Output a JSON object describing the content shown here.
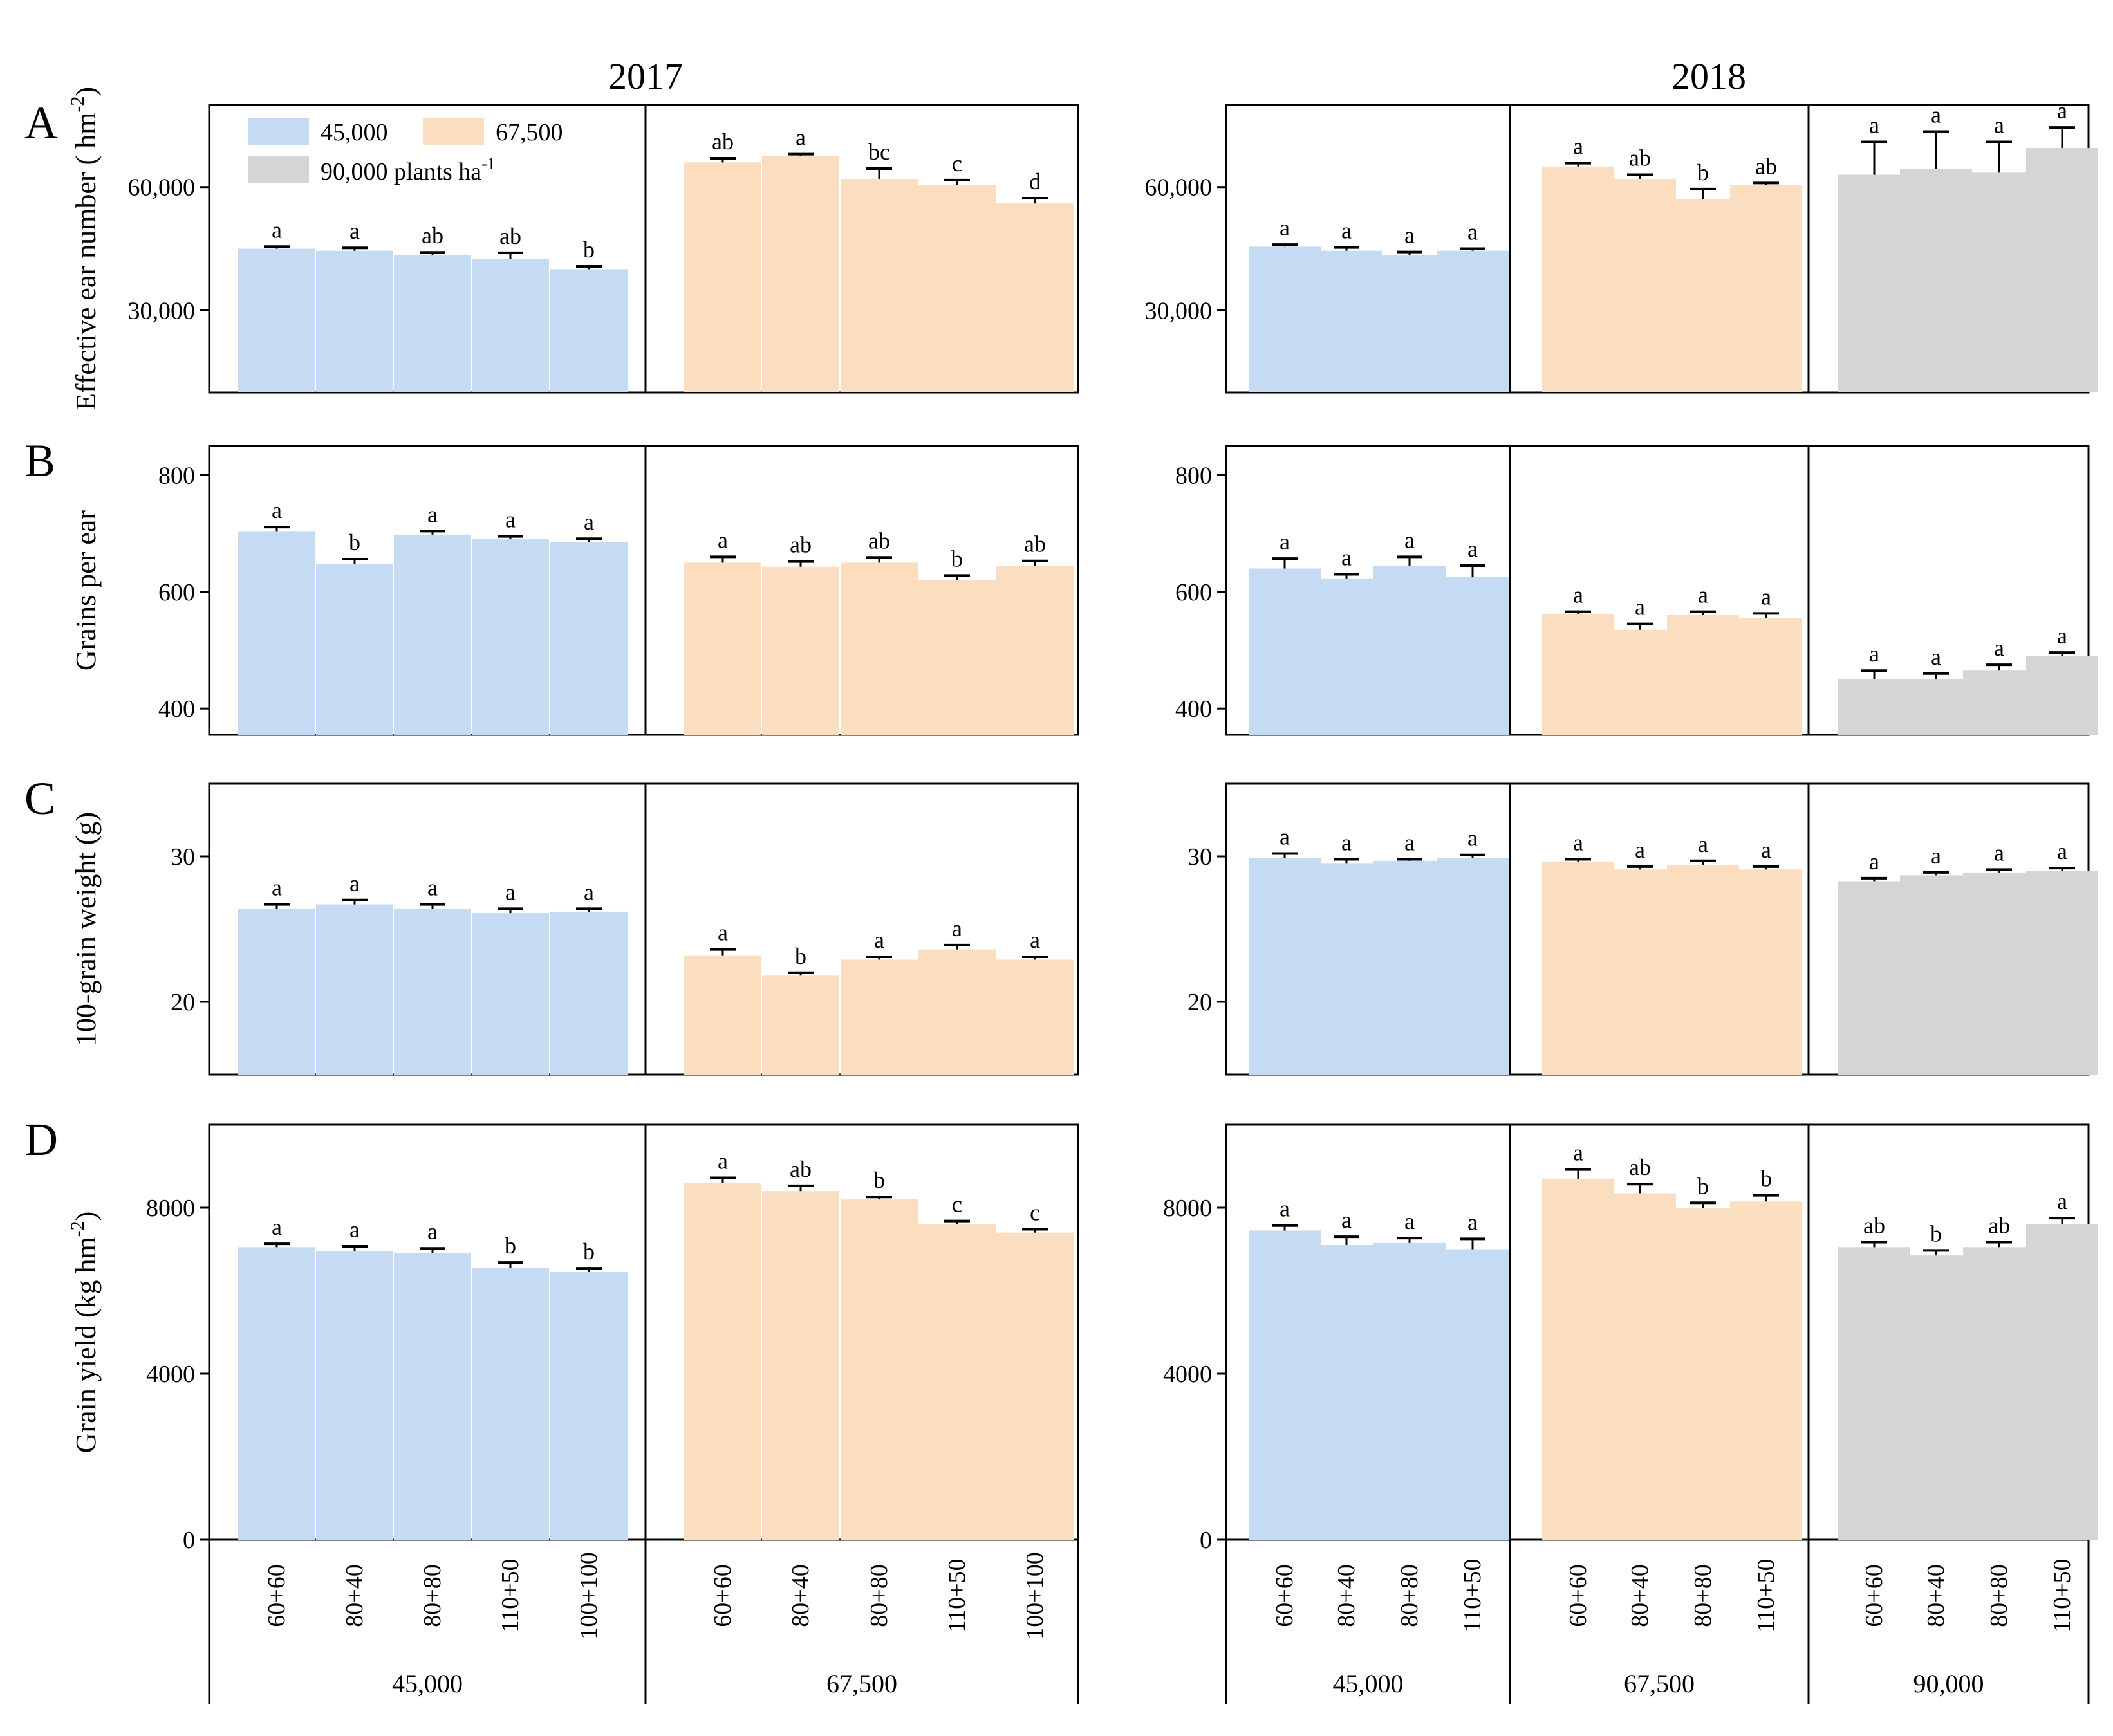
{
  "figure": {
    "years": [
      "2017",
      "2018"
    ],
    "panel_letters": [
      "A",
      "B",
      "C",
      "D"
    ],
    "legend": [
      {
        "label": "45,000",
        "color": "#C5DBF3"
      },
      {
        "label": "67,500",
        "color": "#FBDDBF"
      },
      {
        "label": "90,000 plants ha",
        "sup": "-1",
        "color": "#D5D5D5"
      }
    ],
    "colors": {
      "45000": "#C5DBF3",
      "67500": "#FBDDBF",
      "90000": "#D5D5D5"
    }
  },
  "chart_data": [
    {
      "type": "bar",
      "panel": "A",
      "ylabel": "Effective ear number ( hm",
      "ylabel_sup": "-2",
      "ylabel_tail": ")",
      "ylim": [
        10000,
        80000
      ],
      "yticks": [
        30000,
        60000
      ],
      "ytick_labels": [
        "30,000",
        "60,000"
      ],
      "groups_2017": [
        {
          "density": "45000",
          "categories": [
            "60+60",
            "80+40",
            "80+80",
            "110+50",
            "100+100"
          ],
          "values": [
            45000,
            44500,
            43500,
            42500,
            40000
          ],
          "errors": [
            500,
            700,
            600,
            1500,
            700
          ],
          "letters": [
            "a",
            "a",
            "ab",
            "ab",
            "b"
          ]
        },
        {
          "density": "67500",
          "categories": [
            "60+60",
            "80+40",
            "80+80",
            "110+50",
            "100+100"
          ],
          "values": [
            66000,
            67500,
            62000,
            60500,
            56000
          ],
          "errors": [
            1000,
            500,
            2500,
            1200,
            1300
          ],
          "letters": [
            "ab",
            "a",
            "bc",
            "c",
            "d"
          ]
        }
      ],
      "groups_2018": [
        {
          "density": "45000",
          "categories": [
            "60+60",
            "80+40",
            "80+80",
            "110+50"
          ],
          "values": [
            45500,
            44500,
            43500,
            44500
          ],
          "errors": [
            500,
            800,
            700,
            500
          ],
          "letters": [
            "a",
            "a",
            "a",
            "a"
          ]
        },
        {
          "density": "67500",
          "categories": [
            "60+60",
            "80+40",
            "80+80",
            "110+50"
          ],
          "values": [
            65000,
            62000,
            57000,
            60500
          ],
          "errors": [
            800,
            1000,
            2500,
            500
          ],
          "letters": [
            "a",
            "ab",
            "b",
            "ab"
          ]
        },
        {
          "density": "90000",
          "categories": [
            "60+60",
            "80+40",
            "80+80",
            "110+50"
          ],
          "values": [
            63000,
            64500,
            63500,
            69500
          ],
          "errors": [
            8000,
            9000,
            7500,
            5000
          ],
          "letters": [
            "a",
            "a",
            "a",
            "a"
          ]
        }
      ]
    },
    {
      "type": "bar",
      "panel": "B",
      "ylabel": "Grains per ear",
      "ylabel_sup": "",
      "ylabel_tail": "",
      "ylim": [
        355,
        850
      ],
      "yticks": [
        400,
        600,
        800
      ],
      "ytick_labels": [
        "400",
        "600",
        "800"
      ],
      "groups_2017": [
        {
          "density": "45000",
          "categories": [
            "60+60",
            "80+40",
            "80+80",
            "110+50",
            "100+100"
          ],
          "values": [
            703,
            648,
            698,
            690,
            685
          ],
          "errors": [
            8,
            8,
            6,
            5,
            6
          ],
          "letters": [
            "a",
            "b",
            "a",
            "a",
            "a"
          ]
        },
        {
          "density": "67500",
          "categories": [
            "60+60",
            "80+40",
            "80+80",
            "110+50",
            "100+100"
          ],
          "values": [
            650,
            643,
            650,
            620,
            645
          ],
          "errors": [
            10,
            9,
            9,
            8,
            8
          ],
          "letters": [
            "a",
            "ab",
            "ab",
            "b",
            "ab"
          ]
        }
      ],
      "groups_2018": [
        {
          "density": "45000",
          "categories": [
            "60+60",
            "80+40",
            "80+80",
            "110+50"
          ],
          "values": [
            640,
            622,
            645,
            625
          ],
          "errors": [
            17,
            8,
            15,
            20
          ],
          "letters": [
            "a",
            "a",
            "a",
            "a"
          ]
        },
        {
          "density": "67500",
          "categories": [
            "60+60",
            "80+40",
            "80+80",
            "110+50"
          ],
          "values": [
            562,
            535,
            560,
            555
          ],
          "errors": [
            4,
            10,
            6,
            8
          ],
          "letters": [
            "a",
            "a",
            "a",
            "a"
          ]
        },
        {
          "density": "90000",
          "categories": [
            "60+60",
            "80+40",
            "80+80",
            "110+50"
          ],
          "values": [
            450,
            450,
            465,
            490
          ],
          "errors": [
            15,
            10,
            10,
            6
          ],
          "letters": [
            "a",
            "a",
            "a",
            "a"
          ]
        }
      ]
    },
    {
      "type": "bar",
      "panel": "C",
      "ylabel": "100-grain weight (g)",
      "ylabel_sup": "",
      "ylabel_tail": "",
      "ylim": [
        15,
        35
      ],
      "yticks": [
        20,
        30
      ],
      "ytick_labels": [
        "20",
        "30"
      ],
      "groups_2017": [
        {
          "density": "45000",
          "categories": [
            "60+60",
            "80+40",
            "80+80",
            "110+50",
            "100+100"
          ],
          "values": [
            26.4,
            26.7,
            26.4,
            26.1,
            26.2
          ],
          "errors": [
            0.3,
            0.3,
            0.3,
            0.3,
            0.2
          ],
          "letters": [
            "a",
            "a",
            "a",
            "a",
            "a"
          ]
        },
        {
          "density": "67500",
          "categories": [
            "60+60",
            "80+40",
            "80+80",
            "110+50",
            "100+100"
          ],
          "values": [
            23.2,
            21.8,
            22.9,
            23.6,
            22.9
          ],
          "errors": [
            0.4,
            0.2,
            0.2,
            0.3,
            0.2
          ],
          "letters": [
            "a",
            "b",
            "a",
            "a",
            "a"
          ]
        }
      ],
      "groups_2018": [
        {
          "density": "45000",
          "categories": [
            "60+60",
            "80+40",
            "80+80",
            "110+50"
          ],
          "values": [
            29.9,
            29.5,
            29.7,
            29.9
          ],
          "errors": [
            0.3,
            0.3,
            0.1,
            0.2
          ],
          "letters": [
            "a",
            "a",
            "a",
            "a"
          ]
        },
        {
          "density": "67500",
          "categories": [
            "60+60",
            "80+40",
            "80+80",
            "110+50"
          ],
          "values": [
            29.6,
            29.1,
            29.4,
            29.1
          ],
          "errors": [
            0.2,
            0.2,
            0.3,
            0.2
          ],
          "letters": [
            "a",
            "a",
            "a",
            "a"
          ]
        },
        {
          "density": "90000",
          "categories": [
            "60+60",
            "80+40",
            "80+80",
            "110+50"
          ],
          "values": [
            28.3,
            28.7,
            28.9,
            29.0
          ],
          "errors": [
            0.2,
            0.2,
            0.2,
            0.2
          ],
          "letters": [
            "a",
            "a",
            "a",
            "a"
          ]
        }
      ]
    },
    {
      "type": "bar",
      "panel": "D",
      "ylabel": "Grain yield (kg hm",
      "ylabel_sup": "-2",
      "ylabel_tail": ")",
      "ylim": [
        0,
        10000
      ],
      "yticks": [
        0,
        4000,
        8000
      ],
      "ytick_labels": [
        "0",
        "4000",
        "8000"
      ],
      "groups_2017": [
        {
          "density": "45000",
          "categories": [
            "60+60",
            "80+40",
            "80+80",
            "110+50",
            "100+100"
          ],
          "values": [
            7050,
            6950,
            6900,
            6550,
            6450
          ],
          "errors": [
            80,
            120,
            120,
            130,
            90
          ],
          "letters": [
            "a",
            "a",
            "a",
            "b",
            "b"
          ]
        },
        {
          "density": "67500",
          "categories": [
            "60+60",
            "80+40",
            "80+80",
            "110+50",
            "100+100"
          ],
          "values": [
            8600,
            8400,
            8200,
            7600,
            7400
          ],
          "errors": [
            120,
            130,
            60,
            80,
            80
          ],
          "letters": [
            "a",
            "ab",
            "b",
            "c",
            "c"
          ]
        }
      ],
      "groups_2018": [
        {
          "density": "45000",
          "categories": [
            "60+60",
            "80+40",
            "80+80",
            "110+50"
          ],
          "values": [
            7450,
            7100,
            7150,
            7000
          ],
          "errors": [
            120,
            200,
            120,
            250
          ],
          "letters": [
            "a",
            "a",
            "a",
            "a"
          ]
        },
        {
          "density": "67500",
          "categories": [
            "60+60",
            "80+40",
            "80+80",
            "110+50"
          ],
          "values": [
            8700,
            8350,
            8000,
            8150
          ],
          "errors": [
            220,
            220,
            120,
            150
          ],
          "letters": [
            "a",
            "ab",
            "b",
            "b"
          ]
        },
        {
          "density": "90000",
          "categories": [
            "60+60",
            "80+40",
            "80+80",
            "110+50"
          ],
          "values": [
            7050,
            6850,
            7050,
            7600
          ],
          "errors": [
            120,
            120,
            120,
            150
          ],
          "letters": [
            "ab",
            "b",
            "ab",
            "a"
          ]
        }
      ]
    }
  ],
  "xgroups_2017": [
    "45,000",
    "67,500"
  ],
  "xgroups_2018": [
    "45,000",
    "67,500",
    "90,000"
  ]
}
